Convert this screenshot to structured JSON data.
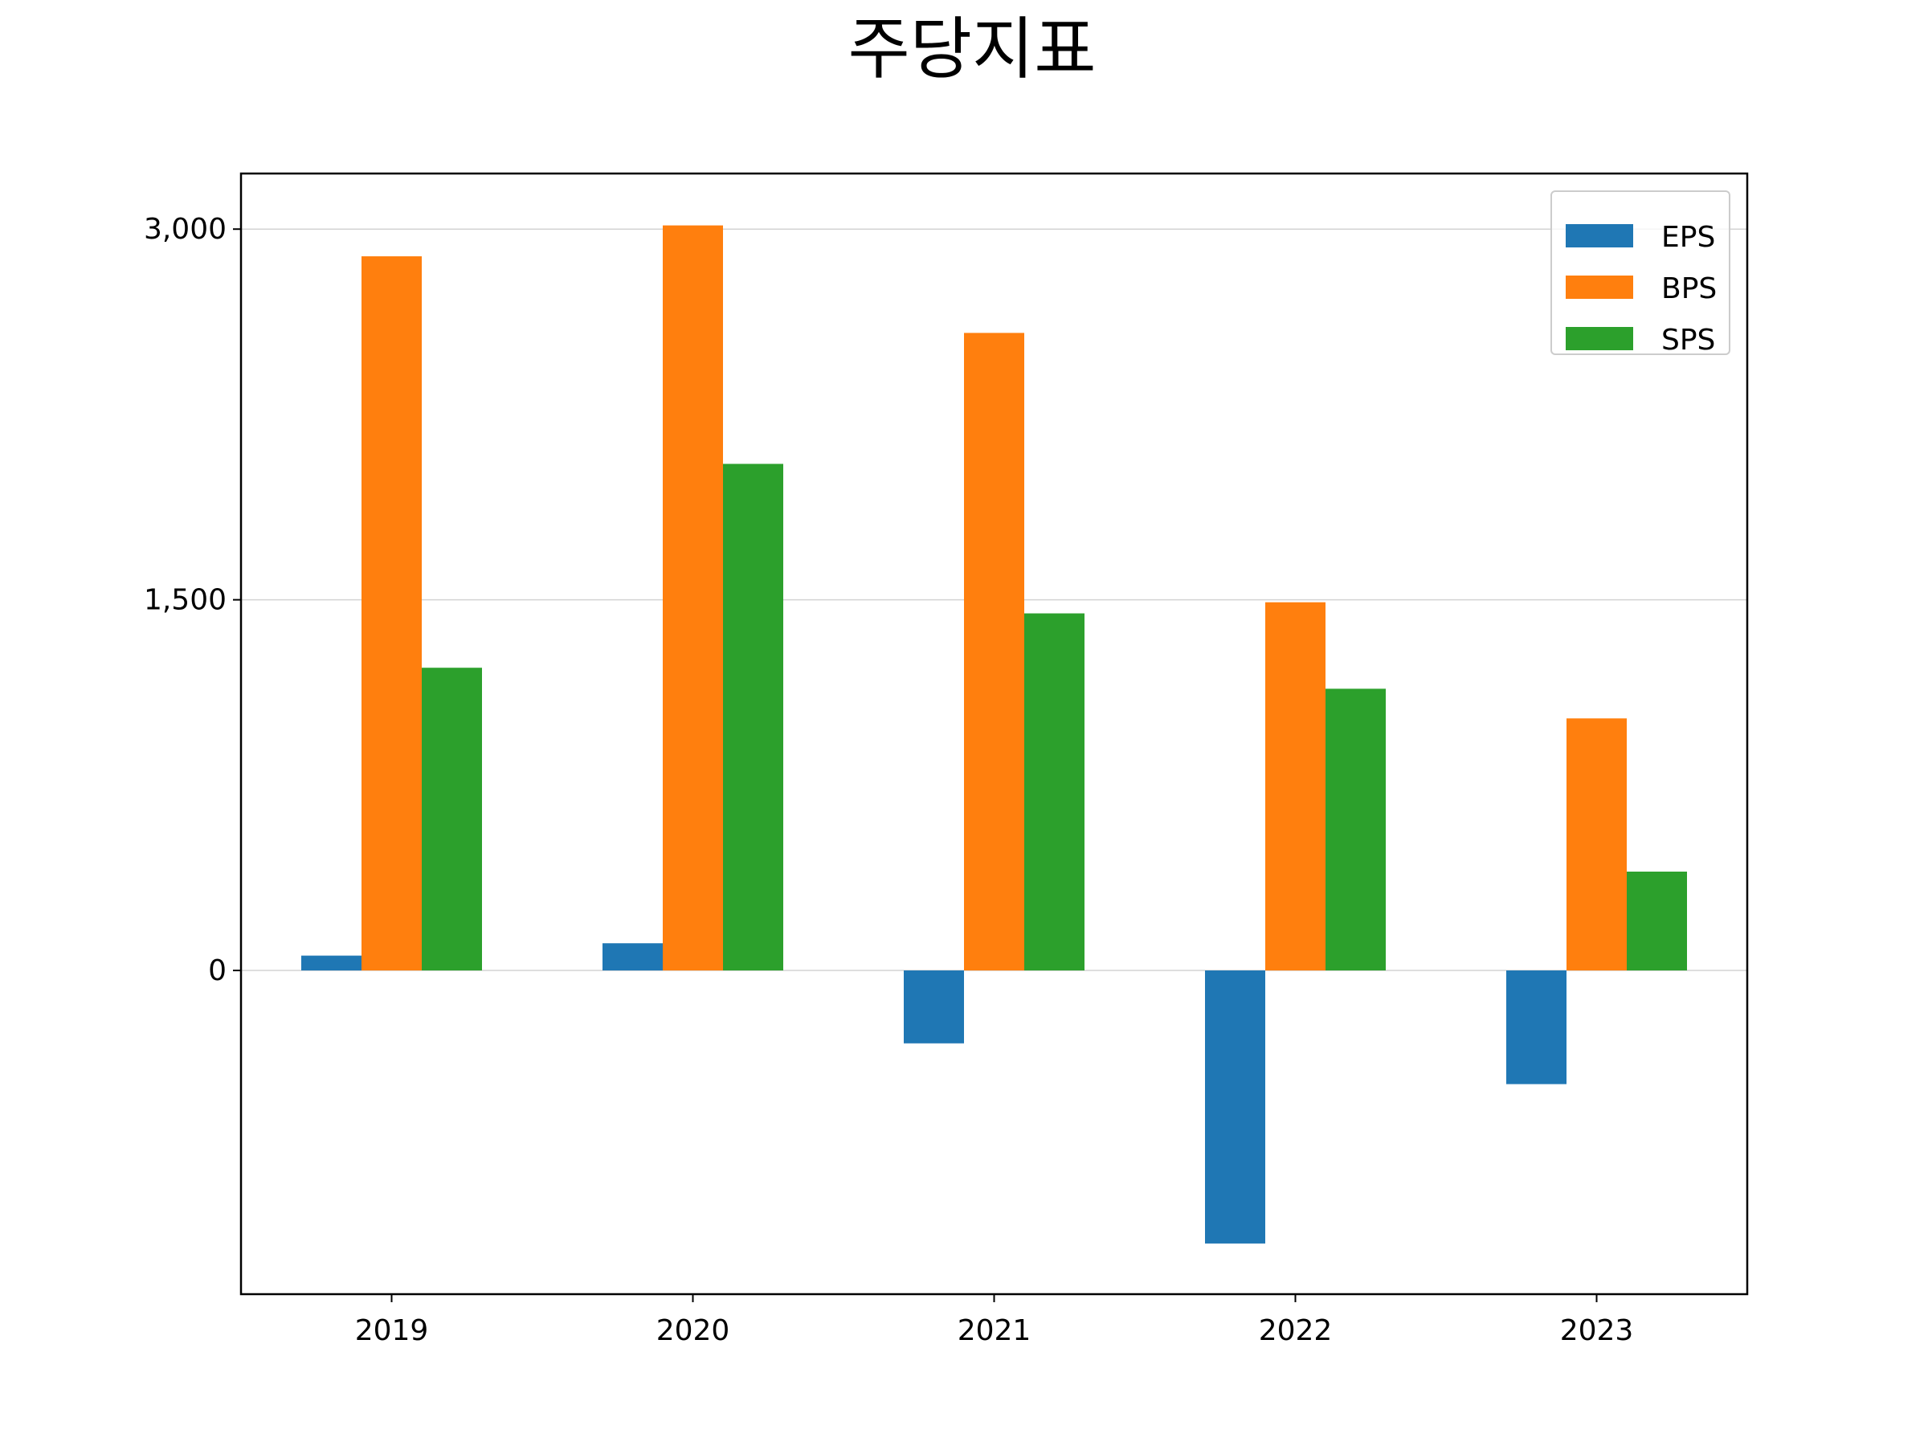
{
  "chart_data": {
    "type": "bar",
    "title": "주당지표",
    "xlabel": "",
    "ylabel": "",
    "categories": [
      "2019",
      "2020",
      "2021",
      "2022",
      "2023"
    ],
    "series": [
      {
        "name": "EPS",
        "color": "#1f77b4",
        "values": [
          60,
          110,
          -295,
          -1105,
          -460
        ]
      },
      {
        "name": "BPS",
        "color": "#ff7f0e",
        "values": [
          2890,
          3015,
          2580,
          1490,
          1020
        ]
      },
      {
        "name": "SPS",
        "color": "#2ca02c",
        "values": [
          1225,
          2050,
          1445,
          1140,
          400
        ]
      }
    ],
    "ylim": [
      -1310,
      3225
    ],
    "yticks": [
      0,
      1500,
      3000
    ],
    "ytick_labels": [
      "0",
      "1,500",
      "3,000"
    ],
    "grid": {
      "y": true,
      "x": false
    },
    "legend": {
      "position": "top-right"
    }
  }
}
